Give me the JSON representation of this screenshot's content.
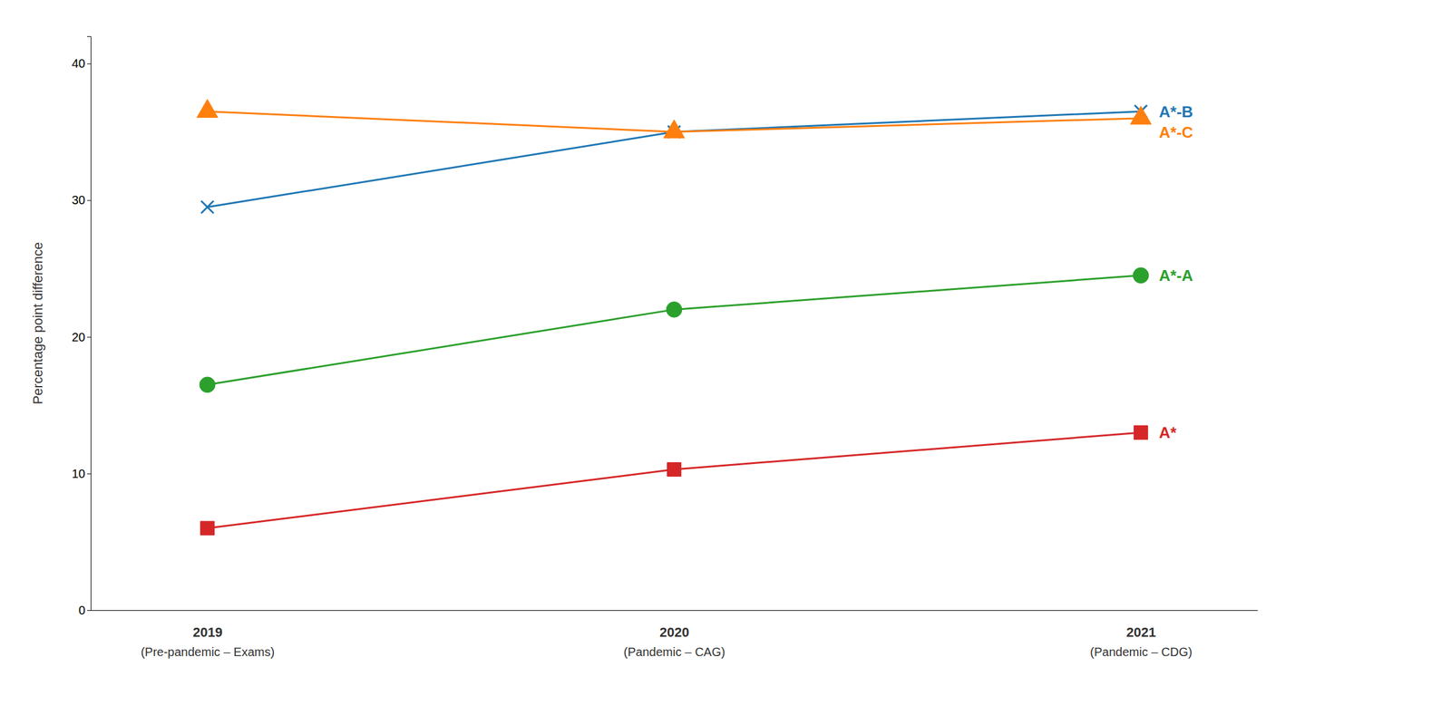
{
  "chart_data": {
    "type": "line",
    "categories": [
      "2019\n(Pre-pandemic – Exams)",
      "2020\n(Pandemic – CAG)",
      "2021\n(Pandemic – CDG)"
    ],
    "series": [
      {
        "name": "A*-B",
        "values": [
          29.5,
          35.0,
          36.5
        ],
        "marker": "x"
      },
      {
        "name": "A*-C",
        "values": [
          36.5,
          35.0,
          36.0
        ],
        "marker": "triangle"
      },
      {
        "name": "A*-A",
        "values": [
          16.5,
          22.0,
          24.5
        ],
        "marker": "circle"
      },
      {
        "name": "A*",
        "values": [
          6.0,
          10.3,
          13.0
        ],
        "marker": "square"
      }
    ],
    "y_label": "Percentage point difference",
    "ylim": [
      0,
      42
    ],
    "yticks": [
      0,
      10,
      20,
      30,
      40
    ],
    "grid": false,
    "legend": false
  }
}
